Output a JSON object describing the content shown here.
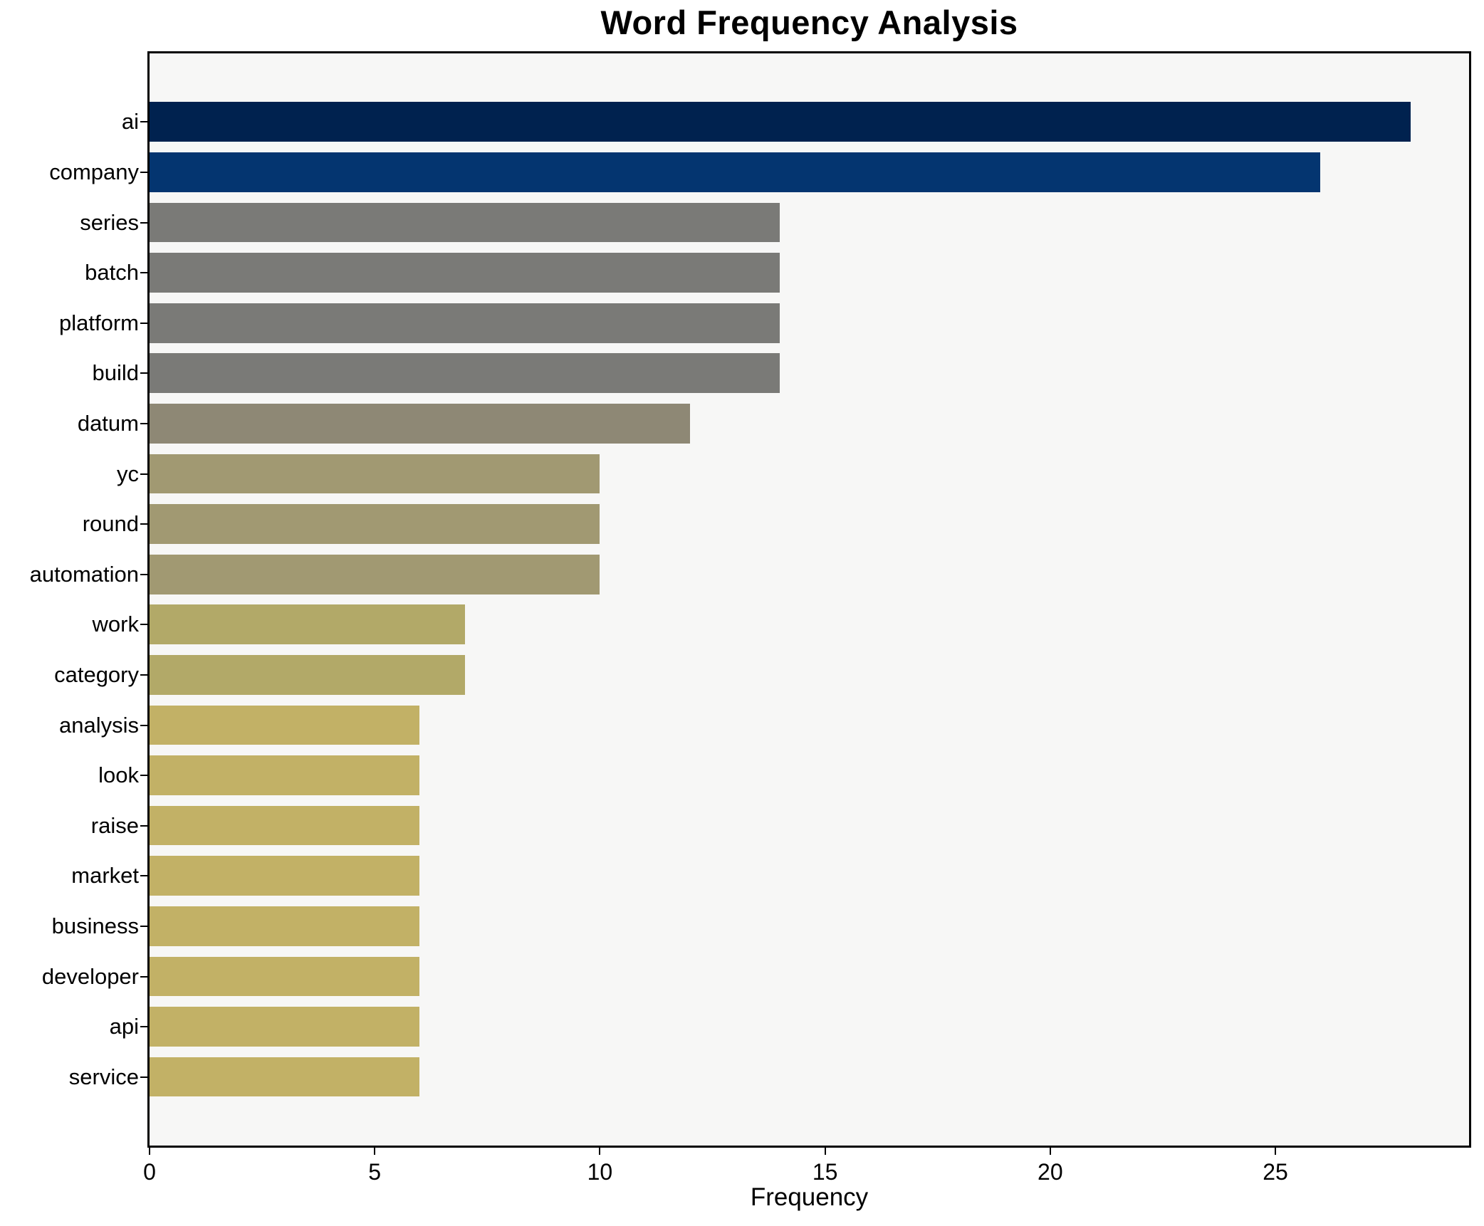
{
  "chart_data": {
    "type": "bar",
    "orientation": "horizontal",
    "title": "Word Frequency Analysis",
    "xlabel": "Frequency",
    "ylabel": "",
    "categories": [
      "ai",
      "company",
      "series",
      "batch",
      "platform",
      "build",
      "datum",
      "yc",
      "round",
      "automation",
      "work",
      "category",
      "analysis",
      "look",
      "raise",
      "market",
      "business",
      "developer",
      "api",
      "service"
    ],
    "values": [
      28,
      26,
      14,
      14,
      14,
      14,
      12,
      10,
      10,
      10,
      7,
      7,
      6,
      6,
      6,
      6,
      6,
      6,
      6,
      6
    ],
    "bar_colors": [
      "#00224f",
      "#043570",
      "#7a7a77",
      "#7a7a77",
      "#7a7a77",
      "#7a7a77",
      "#8e8875",
      "#a19972",
      "#a19972",
      "#a19972",
      "#b2a968",
      "#b2a968",
      "#c2b166",
      "#c2b166",
      "#c2b166",
      "#c2b166",
      "#c2b166",
      "#c2b166",
      "#c2b166",
      "#c2b166"
    ],
    "xticks": [
      0,
      5,
      10,
      15,
      20,
      25
    ],
    "xlim": [
      0,
      29.3
    ],
    "grid": false,
    "legend": null,
    "colors": {
      "figure_background": "#ffffff",
      "plot_background": "#f7f7f6",
      "spine": "#000000",
      "text": "#000000"
    }
  }
}
